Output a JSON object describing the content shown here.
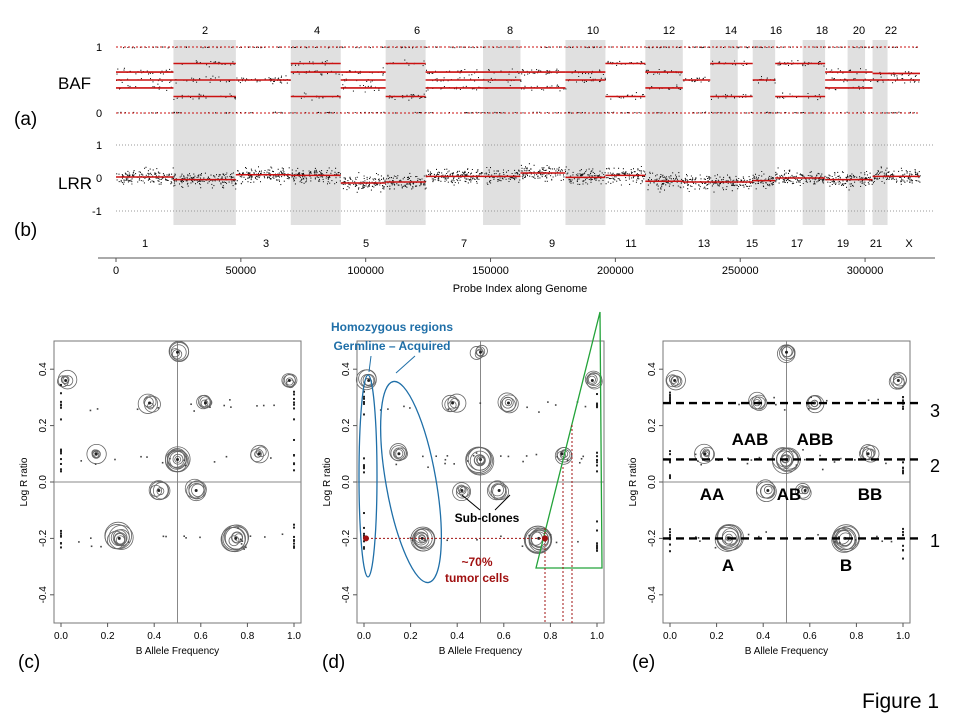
{
  "figure_label": "Figure 1",
  "panel_tags": {
    "a": "(a)",
    "b": "(b)",
    "c": "(c)",
    "d": "(d)",
    "e": "(e)"
  },
  "colors": {
    "baf_trace": "#cc1111",
    "shade": "#e0e0e0",
    "annotation_blue": "#1f6fa8",
    "annotation_red": "#a01010",
    "annotation_green": "#23a33a"
  },
  "chart_data": [
    {
      "type": "scatter",
      "panel": "a",
      "ylabel": "BAF",
      "ylim": [
        0,
        1
      ],
      "y_ticks": [
        "0",
        "1"
      ],
      "chromosome_labels_top": [
        "2",
        "4",
        "6",
        "8",
        "10",
        "12",
        "14",
        "16",
        "18",
        "20",
        "22"
      ],
      "segments": [
        {
          "x0": 0,
          "x1": 23000,
          "levels": [
            0.5,
            0.38,
            0.62
          ]
        },
        {
          "x0": 23000,
          "x1": 48000,
          "levels": [
            0.5,
            0.25,
            0.75
          ]
        },
        {
          "x0": 48000,
          "x1": 70000,
          "levels": [
            0.5
          ]
        },
        {
          "x0": 70000,
          "x1": 90000,
          "levels": [
            0.75,
            0.25,
            0.62
          ]
        },
        {
          "x0": 90000,
          "x1": 108000,
          "levels": [
            0.5,
            0.62,
            0.38
          ]
        },
        {
          "x0": 108000,
          "x1": 124000,
          "levels": [
            0.25,
            0.75
          ]
        },
        {
          "x0": 124000,
          "x1": 162000,
          "levels": [
            0.38,
            0.62,
            0.5
          ]
        },
        {
          "x0": 162000,
          "x1": 180000,
          "levels": [
            0.62,
            0.38
          ]
        },
        {
          "x0": 180000,
          "x1": 196000,
          "levels": [
            0.5,
            0.62
          ]
        },
        {
          "x0": 196000,
          "x1": 212000,
          "levels": [
            0.25,
            0.75
          ]
        },
        {
          "x0": 212000,
          "x1": 227000,
          "levels": [
            0.38,
            0.62
          ]
        },
        {
          "x0": 227000,
          "x1": 238000,
          "levels": [
            0.5
          ]
        },
        {
          "x0": 238000,
          "x1": 255000,
          "levels": [
            0.25,
            0.75
          ]
        },
        {
          "x0": 255000,
          "x1": 264000,
          "levels": [
            0.5
          ]
        },
        {
          "x0": 264000,
          "x1": 284000,
          "levels": [
            0.75,
            0.25
          ]
        },
        {
          "x0": 284000,
          "x1": 303000,
          "levels": [
            0.38,
            0.62,
            0.5
          ]
        },
        {
          "x0": 303000,
          "x1": 322000,
          "levels": [
            0.5,
            0.6
          ]
        }
      ]
    },
    {
      "type": "scatter",
      "panel": "b",
      "ylabel": "LRR",
      "xlabel": "Probe Index along Genome",
      "ylim": [
        -1,
        1
      ],
      "y_ticks": [
        "1",
        "0",
        "-1"
      ],
      "x_ticks": [
        0,
        50000,
        100000,
        150000,
        200000,
        250000,
        300000
      ],
      "xlim": [
        0,
        322000
      ],
      "chromosome_labels_bottom": [
        "1",
        "3",
        "5",
        "7",
        "9",
        "11",
        "13",
        "15",
        "17",
        "19",
        "21",
        "X"
      ],
      "segments": [
        {
          "x0": 0,
          "x1": 23000,
          "level": 0.03
        },
        {
          "x0": 23000,
          "x1": 48000,
          "level": -0.05
        },
        {
          "x0": 48000,
          "x1": 70000,
          "level": 0.1
        },
        {
          "x0": 70000,
          "x1": 90000,
          "level": 0.08
        },
        {
          "x0": 90000,
          "x1": 108000,
          "level": -0.15
        },
        {
          "x0": 108000,
          "x1": 124000,
          "level": -0.12
        },
        {
          "x0": 124000,
          "x1": 162000,
          "level": 0.05
        },
        {
          "x0": 162000,
          "x1": 180000,
          "level": 0.15
        },
        {
          "x0": 180000,
          "x1": 196000,
          "level": 0.02
        },
        {
          "x0": 196000,
          "x1": 212000,
          "level": 0.08
        },
        {
          "x0": 212000,
          "x1": 227000,
          "level": -0.1
        },
        {
          "x0": 227000,
          "x1": 238000,
          "level": -0.12
        },
        {
          "x0": 238000,
          "x1": 255000,
          "level": -0.12
        },
        {
          "x0": 255000,
          "x1": 264000,
          "level": -0.08
        },
        {
          "x0": 264000,
          "x1": 284000,
          "level": 0.0
        },
        {
          "x0": 284000,
          "x1": 303000,
          "level": -0.05
        },
        {
          "x0": 303000,
          "x1": 322000,
          "level": 0.05
        }
      ],
      "shaded_ranges": [
        [
          23000,
          48000
        ],
        [
          70000,
          90000
        ],
        [
          108000,
          124000
        ],
        [
          147000,
          162000
        ],
        [
          180000,
          196000
        ],
        [
          212000,
          227000
        ],
        [
          238000,
          249000
        ],
        [
          255000,
          264000
        ],
        [
          275000,
          284000
        ],
        [
          293000,
          300000
        ],
        [
          303000,
          309000
        ]
      ]
    },
    {
      "type": "scatter",
      "panel": "c",
      "xlabel": "B Allele Frequency",
      "ylabel": "Log R ratio",
      "xlim": [
        -0.03,
        1.03
      ],
      "ylim": [
        -0.5,
        0.5
      ],
      "x_ticks": [
        "0.0",
        "0.2",
        "0.4",
        "0.6",
        "0.8",
        "1.0"
      ],
      "y_ticks": [
        "-0.4",
        "-0.2",
        "0.0",
        "0.2",
        "0.4"
      ],
      "clusters": [
        {
          "x": 0.25,
          "y": -0.2
        },
        {
          "x": 0.75,
          "y": -0.2
        },
        {
          "x": 0.5,
          "y": 0.08
        },
        {
          "x": 0.38,
          "y": 0.28
        },
        {
          "x": 0.62,
          "y": 0.28
        },
        {
          "x": 0.15,
          "y": 0.1
        },
        {
          "x": 0.85,
          "y": 0.1
        },
        {
          "x": 0.42,
          "y": -0.03
        },
        {
          "x": 0.58,
          "y": -0.03
        },
        {
          "x": 0.5,
          "y": 0.46
        },
        {
          "x": 0.02,
          "y": 0.36
        },
        {
          "x": 0.98,
          "y": 0.36
        }
      ]
    },
    {
      "type": "scatter",
      "panel": "d",
      "xlabel": "B Allele Frequency",
      "ylabel": "Log R ratio",
      "xlim": [
        -0.03,
        1.03
      ],
      "ylim": [
        -0.5,
        0.5
      ],
      "x_ticks": [
        "0.0",
        "0.2",
        "0.4",
        "0.6",
        "0.8",
        "1.0"
      ],
      "y_ticks": [
        "-0.4",
        "-0.2",
        "0.0",
        "0.2",
        "0.4"
      ],
      "annotations": {
        "homozygous_line1": "Homozygous regions",
        "homozygous_line2": "Germline – Acquired",
        "subclones": "Sub-clones",
        "tumor_line1": "~70%",
        "tumor_line2": "tumor cells"
      }
    },
    {
      "type": "scatter",
      "panel": "e",
      "xlabel": "B Allele Frequency",
      "ylabel": "Log R ratio",
      "xlim": [
        -0.03,
        1.03
      ],
      "ylim": [
        -0.5,
        0.5
      ],
      "x_ticks": [
        "0.0",
        "0.2",
        "0.4",
        "0.6",
        "0.8",
        "1.0"
      ],
      "y_ticks": [
        "-0.4",
        "-0.2",
        "0.0",
        "0.2",
        "0.4"
      ],
      "genotype_labels": [
        {
          "text": "AAB",
          "x": 0.34,
          "y": 0.2
        },
        {
          "text": "ABB",
          "x": 0.62,
          "y": 0.2
        },
        {
          "text": "AA",
          "x": 0.17,
          "y": -0.06
        },
        {
          "text": "AB",
          "x": 0.5,
          "y": -0.06
        },
        {
          "text": "BB",
          "x": 0.86,
          "y": -0.06
        },
        {
          "text": "A",
          "x": 0.24,
          "y": -0.38
        },
        {
          "text": "B",
          "x": 0.76,
          "y": -0.38
        }
      ],
      "copy_number_lines": [
        {
          "label": "3",
          "y": 0.28
        },
        {
          "label": "2",
          "y": 0.08
        },
        {
          "label": "1",
          "y": -0.2
        }
      ]
    }
  ]
}
